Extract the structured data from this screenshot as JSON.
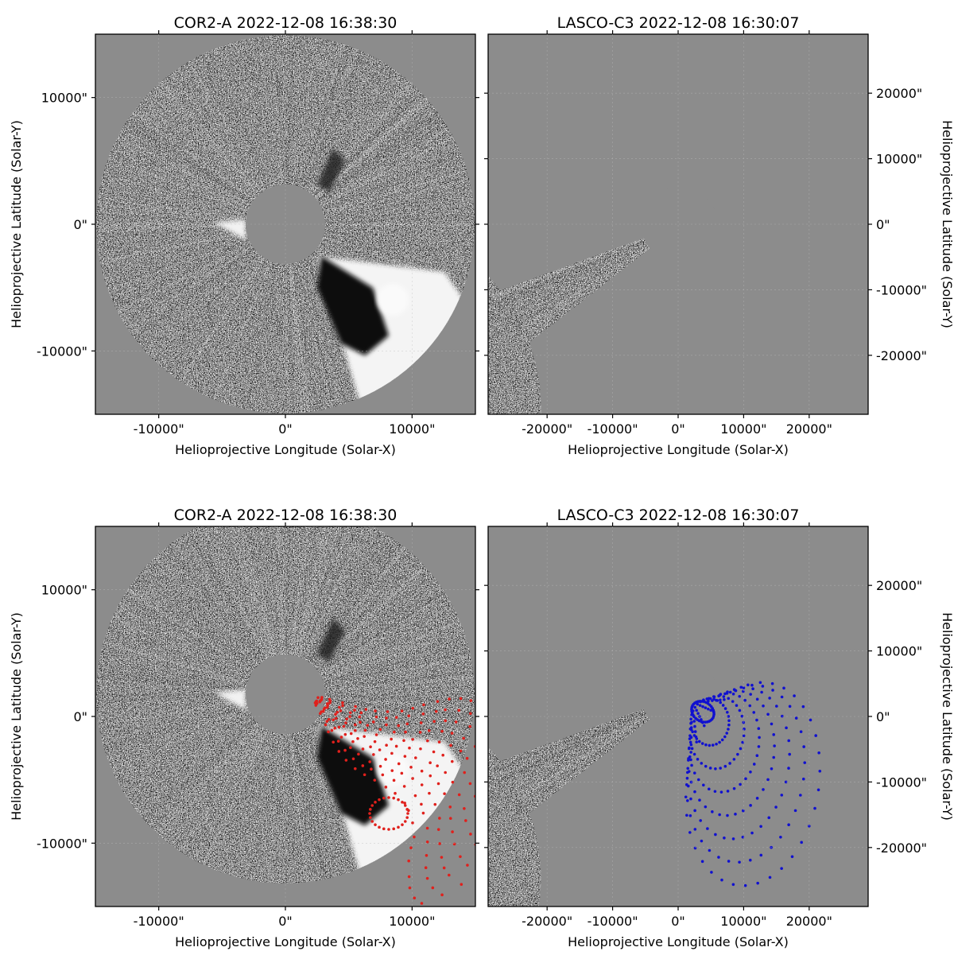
{
  "figure": {
    "panels": [
      {
        "id": "top-left",
        "title": "COR2-A 2022-12-08 16:38:30",
        "xlabel": "Helioprojective Longitude (Solar-X)",
        "ylabel": "Helioprojective Latitude (Solar-Y)",
        "ylabel_side": "left",
        "x_ticks": [
          "-10000\"",
          "0\"",
          "10000\""
        ],
        "y_ticks": [
          "10000\"",
          "0\"",
          "-10000\""
        ],
        "xlim": [
          -15000,
          15000
        ],
        "ylim": [
          -15000,
          15000
        ],
        "overlay": "none"
      },
      {
        "id": "top-right",
        "title": "LASCO-C3 2022-12-08 16:30:07",
        "xlabel": "Helioprojective Longitude (Solar-X)",
        "ylabel": "Helioprojective Latitude (Solar-Y)",
        "ylabel_side": "right",
        "x_ticks": [
          "-20000\"",
          "-10000\"",
          "0\"",
          "10000\"",
          "20000\""
        ],
        "y_ticks": [
          "20000\"",
          "10000\"",
          "0\"",
          "-10000\"",
          "-20000\""
        ],
        "xlim": [
          -29000,
          29000
        ],
        "ylim": [
          -29000,
          29000
        ],
        "overlay": "none"
      },
      {
        "id": "bottom-left",
        "title": "COR2-A 2022-12-08 16:38:30",
        "xlabel": "Helioprojective Longitude (Solar-X)",
        "ylabel": "Helioprojective Latitude (Solar-Y)",
        "ylabel_side": "left",
        "x_ticks": [
          "-10000\"",
          "0\"",
          "10000\""
        ],
        "y_ticks": [
          "10000\"",
          "0\"",
          "-10000\""
        ],
        "xlim": [
          -15000,
          15000
        ],
        "ylim": [
          -15000,
          15000
        ],
        "overlay": "red"
      },
      {
        "id": "bottom-right",
        "title": "LASCO-C3 2022-12-08 16:30:07",
        "xlabel": "Helioprojective Longitude (Solar-X)",
        "ylabel": "Helioprojective Latitude (Solar-Y)",
        "ylabel_side": "right",
        "x_ticks": [
          "-20000\"",
          "-10000\"",
          "0\"",
          "10000\"",
          "20000\""
        ],
        "y_ticks": [
          "20000\"",
          "10000\"",
          "0\"",
          "-10000\"",
          "-20000\""
        ],
        "xlim": [
          -29000,
          29000
        ],
        "ylim": [
          -29000,
          29000
        ],
        "overlay": "blue"
      }
    ],
    "colors": {
      "background": "#8c8c8c",
      "occulter": "#8c8c8c",
      "overlay_red": "#e0201c",
      "overlay_blue": "#1010d0"
    }
  }
}
